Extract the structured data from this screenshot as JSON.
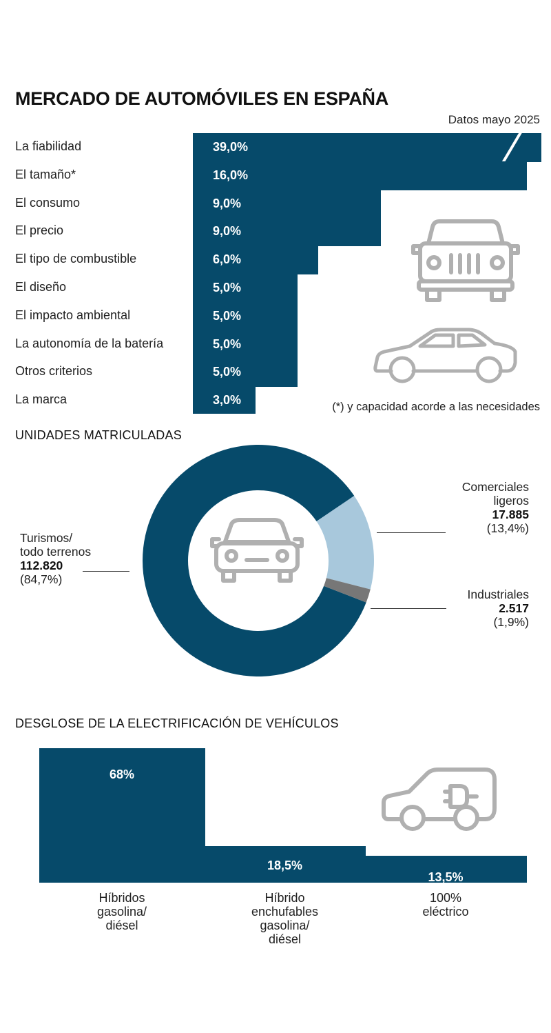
{
  "title": "MERCADO DE AUTOMÓVILES EN ESPAÑA",
  "data_note": "Datos mayo 2025",
  "footnote": "(*) y capacidad acorde a las necesidades",
  "colors": {
    "bar": "#064a6a",
    "comerciales": "#a8c8dc",
    "industriales": "#777777",
    "icon": "#b0b0b0"
  },
  "icons": [
    "jeep-icon",
    "sedan-icon",
    "car-front-icon",
    "electric-car-icon"
  ],
  "chart_data": [
    {
      "type": "bar",
      "orientation": "horizontal",
      "title": "MERCADO DE AUTOMÓVILES EN ESPAÑA",
      "subtitle": "Datos mayo 2025",
      "categories": [
        "La fiabilidad",
        "El tamaño*",
        "El consumo",
        "El precio",
        "El tipo de combustible",
        "El diseño",
        "El impacto ambiental",
        "La autonomía de la batería",
        "Otros criterios",
        "La marca"
      ],
      "values": [
        39.0,
        16.0,
        9.0,
        9.0,
        6.0,
        5.0,
        5.0,
        5.0,
        5.0,
        3.0
      ],
      "labels": [
        "39,0%",
        "16,0%",
        "9,0%",
        "9,0%",
        "6,0%",
        "5,0%",
        "5,0%",
        "5,0%",
        "5,0%",
        "3,0%"
      ],
      "unit": "%",
      "axis_break_on": "La fiabilidad"
    },
    {
      "type": "pie",
      "variant": "donut",
      "title": "UNIDADES MATRICULADAS",
      "slices": [
        {
          "name_lines": [
            "Turismos/",
            "todo terrenos"
          ],
          "value": 112820,
          "value_label": "112.820",
          "percent": 84.7,
          "percent_label": "(84,7%)",
          "color": "#064a6a"
        },
        {
          "name_lines": [
            "Comerciales",
            "ligeros"
          ],
          "value": 17885,
          "value_label": "17.885",
          "percent": 13.4,
          "percent_label": "(13,4%)",
          "color": "#a8c8dc"
        },
        {
          "name_lines": [
            "Industriales"
          ],
          "value": 2517,
          "value_label": "2.517",
          "percent": 1.9,
          "percent_label": "(1,9%)",
          "color": "#777777"
        }
      ]
    },
    {
      "type": "bar",
      "title": "DESGLOSE DE LA ELECTRIFICACIÓN DE VEHÍCULOS",
      "categories": [
        [
          "Híbridos",
          "gasolina/",
          "diésel"
        ],
        [
          "Híbrido",
          "enchufables",
          "gasolina/",
          "diésel"
        ],
        [
          "100%",
          "eléctrico"
        ]
      ],
      "values": [
        68,
        18.5,
        13.5
      ],
      "labels": [
        "68%",
        "18,5%",
        "13,5%"
      ],
      "unit": "%"
    }
  ]
}
